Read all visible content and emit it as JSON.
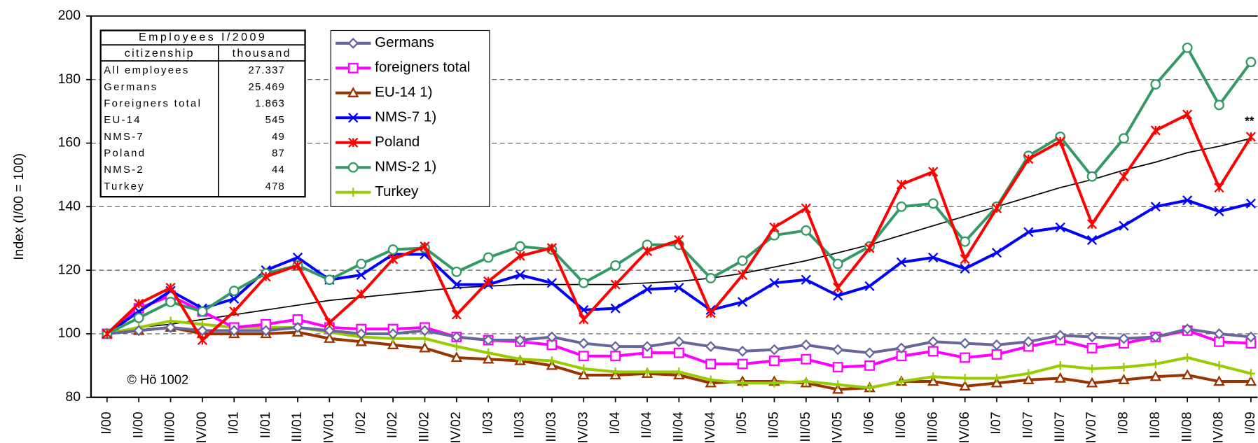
{
  "chart_data": {
    "type": "line",
    "y_label": "Index (I/00 = 100)",
    "annotations": [
      "**",
      "© Hö 1002"
    ],
    "categories": [
      "I/00",
      "II/00",
      "III/00",
      "IV/00",
      "I/01",
      "II/01",
      "III/01",
      "IV/01",
      "I/02",
      "II/02",
      "III/02",
      "IV/02",
      "I/03",
      "II/03",
      "III/03",
      "IV/03",
      "I/04",
      "II/04",
      "III/04",
      "IV/04",
      "I/05",
      "II/05",
      "III/05",
      "IV/05",
      "I/06",
      "II/06",
      "III/06",
      "IV/06",
      "I/07",
      "II/07",
      "III/07",
      "IV/07",
      "I/08",
      "II/08",
      "III/08",
      "IV/08",
      "I/09"
    ],
    "ylim": [
      80,
      200
    ],
    "yticks": [
      80,
      100,
      120,
      140,
      160,
      180,
      200
    ],
    "grid": true,
    "series": [
      {
        "name": "Germans",
        "color": "#66669a",
        "marker": "diamond",
        "values": [
          100,
          101,
          102,
          101,
          101,
          101,
          102,
          101,
          100,
          100,
          101,
          99,
          98,
          98,
          99,
          97,
          96,
          96,
          97.5,
          96,
          94.5,
          95,
          96.5,
          95,
          94,
          95.5,
          97.5,
          97,
          96.5,
          97.5,
          99.5,
          99,
          98.5,
          99,
          101.5,
          100,
          99
        ]
      },
      {
        "name": "foreigners total",
        "color": "#ff00ff",
        "marker": "square",
        "values": [
          100,
          108,
          112,
          107,
          102,
          103,
          104.5,
          102,
          101.5,
          101.5,
          102,
          99,
          98,
          97.5,
          96.5,
          93,
          93,
          94,
          94,
          90.5,
          90.5,
          91.5,
          92,
          89.5,
          90,
          93,
          94.5,
          92.5,
          93.5,
          96,
          98,
          95.5,
          97,
          99,
          101,
          97.5,
          97
        ]
      },
      {
        "name": "EU-14 1)",
        "color": "#993300",
        "marker": "triangle",
        "values": [
          100,
          101,
          102,
          100,
          100,
          100,
          100.5,
          98.5,
          97.5,
          96.5,
          95.5,
          92.5,
          92,
          91.5,
          90,
          87,
          87,
          87.5,
          87,
          84.5,
          85,
          85,
          84.5,
          82.5,
          83,
          85,
          85,
          83.5,
          84.5,
          85.5,
          86,
          84.5,
          85.5,
          86.5,
          87,
          85,
          85
        ]
      },
      {
        "name": "NMS-7 1)",
        "color": "#0000ff",
        "marker": "x",
        "values": [
          100,
          107,
          113.5,
          108,
          111,
          120,
          124,
          117,
          118.5,
          125,
          125,
          115.5,
          115.5,
          118.5,
          116,
          107.5,
          108,
          114,
          114.5,
          107.5,
          110,
          116,
          117,
          112,
          115,
          122.5,
          124,
          120.5,
          125.5,
          132,
          133.5,
          129.5,
          134,
          140,
          142,
          138.5,
          141
        ]
      },
      {
        "name": "Poland",
        "color": "#ff0000",
        "marker": "star",
        "values": [
          100,
          109.5,
          114.5,
          98,
          107,
          118,
          121.5,
          103.5,
          112.5,
          123.5,
          127.5,
          106,
          116.5,
          124.5,
          127,
          104.5,
          115.5,
          126,
          129.5,
          106.5,
          118.5,
          133.5,
          139.5,
          114.5,
          127,
          147,
          151,
          123.5,
          139.5,
          155,
          160.5,
          134.5,
          149.5,
          164,
          169,
          146,
          162
        ]
      },
      {
        "name": "NMS-2 1)",
        "color": "#339966",
        "marker": "circle",
        "values": [
          100,
          105,
          110,
          107,
          113.5,
          119,
          121.5,
          117,
          122,
          126.5,
          127,
          119.5,
          124,
          127.5,
          126.5,
          116,
          121.5,
          128,
          128,
          117.5,
          123,
          131,
          132.5,
          122,
          127.5,
          140,
          141,
          129,
          140,
          156,
          162,
          149.5,
          161.5,
          178.5,
          190,
          172,
          185.5
        ]
      },
      {
        "name": "Turkey",
        "color": "#99cc00",
        "marker": "plus",
        "values": [
          100,
          102,
          104,
          103,
          102,
          102,
          102,
          100.5,
          99,
          98.5,
          98.5,
          96,
          94,
          92,
          91.5,
          89,
          88,
          88,
          88,
          85.5,
          84.5,
          84.5,
          85,
          84,
          83,
          85,
          86.5,
          86,
          86,
          87.5,
          90,
          89,
          89.5,
          90.5,
          92.5,
          90,
          87.5
        ]
      },
      {
        "color": "#000000",
        "values": [
          100.5,
          102,
          103,
          104.5,
          106,
          107.5,
          109,
          110.5,
          111.5,
          112.5,
          113.5,
          114.5,
          115,
          115.5,
          115.5,
          115.5,
          115.5,
          116,
          116.5,
          117.5,
          119,
          121,
          123,
          125.5,
          128,
          131,
          134,
          137,
          140,
          143,
          146,
          148.5,
          151.5,
          154,
          157,
          159,
          161.5
        ]
      }
    ],
    "inset_table": {
      "title": "Employees I/2009",
      "headers": [
        "citizenship",
        "thousand"
      ],
      "rows": [
        [
          "All employees",
          "27.337"
        ],
        [
          "Germans",
          "25.469"
        ],
        [
          "Foreigners total",
          "1.863"
        ],
        [
          "EU-14",
          "545"
        ],
        [
          "NMS-7",
          "49"
        ],
        [
          "Poland",
          "87"
        ],
        [
          "NMS-2",
          "44"
        ],
        [
          "Turkey",
          "478"
        ]
      ]
    }
  }
}
